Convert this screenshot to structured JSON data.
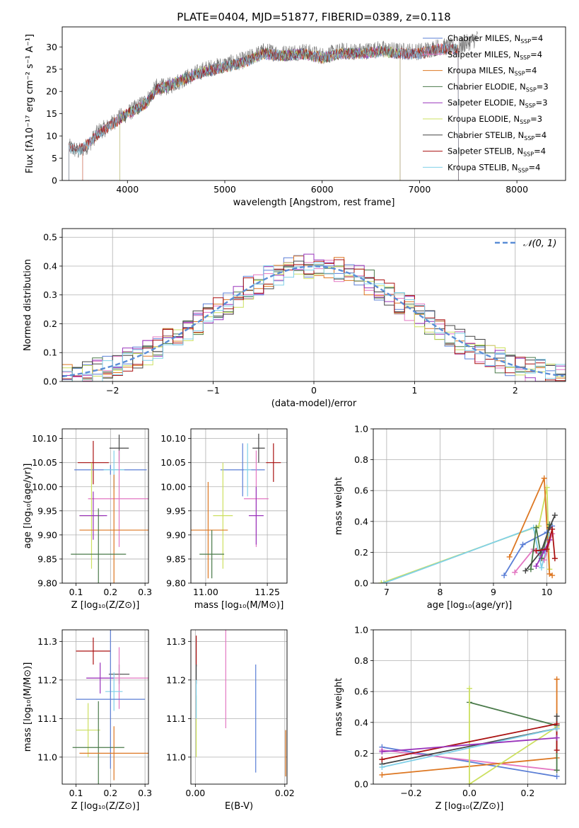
{
  "chart_data": [
    {
      "id": "spectrum",
      "type": "line",
      "title": "PLATE=0404, MJD=51877, FIBERID=0389, z=0.118",
      "xlabel": "wavelength [Angstrom, rest frame]",
      "ylabel": "Flux [fλ10⁻¹⁷ erg cm⁻² s⁻¹ A⁻¹]",
      "xlim": [
        3330,
        8500
      ],
      "ylim": [
        0,
        34.5
      ],
      "xticks": [
        4000,
        5000,
        6000,
        7000,
        8000
      ],
      "yticks": [
        0,
        5,
        10,
        15,
        20,
        25,
        30
      ],
      "legend_position": "top-right",
      "observed": {
        "color": "#777777",
        "x": [
          3400,
          3500,
          3600,
          3700,
          3800,
          3900,
          4000,
          4100,
          4200,
          4300,
          4400,
          4600,
          4800,
          5000,
          5200,
          5400,
          5600,
          5800,
          6000,
          6200,
          6400,
          6600,
          6800,
          7000,
          7200,
          7400,
          7600
        ],
        "y": [
          7.5,
          6.5,
          8,
          11,
          12,
          14,
          15,
          16.5,
          18,
          21,
          21,
          23,
          25,
          26,
          27,
          29,
          28.5,
          29,
          28,
          29,
          29,
          29.5,
          29,
          29,
          30,
          30,
          32
        ]
      },
      "models": {
        "x": [
          3400,
          3500,
          3600,
          3700,
          3800,
          3900,
          4000,
          4100,
          4200,
          4300,
          4400,
          4600,
          4800,
          5000,
          5200,
          5400,
          5600,
          5800,
          6000,
          6200,
          6400,
          6600,
          6800,
          7000,
          7200,
          7400
        ],
        "y": [
          7.5,
          6.8,
          8.2,
          10.5,
          12,
          13.5,
          15,
          16,
          17.5,
          20.5,
          21,
          23,
          24.5,
          25.5,
          26.5,
          28.5,
          28,
          28.5,
          27.5,
          28.5,
          28.5,
          29,
          28.5,
          28.5,
          29.5,
          29.5
        ]
      },
      "series": [
        {
          "name": "Chabrier MILES, N",
          "sub": "SSP",
          "suffix": "=4",
          "color": "#5b7fd6",
          "range": [
            3540,
            7400
          ]
        },
        {
          "name": "Salpeter MILES, N",
          "sub": "SSP",
          "suffix": "=4",
          "color": "#e377c2",
          "range": [
            3540,
            7400
          ]
        },
        {
          "name": "Kroupa MILES, N",
          "sub": "SSP",
          "suffix": "=4",
          "color": "#dd7722",
          "range": [
            3540,
            7400
          ]
        },
        {
          "name": "Chabrier ELODIE, N",
          "sub": "SSP",
          "suffix": "=3",
          "color": "#4a7a4a",
          "range": [
            3920,
            6800
          ]
        },
        {
          "name": "Salpeter ELODIE, N",
          "sub": "SSP",
          "suffix": "=3",
          "color": "#9933bb",
          "range": [
            3920,
            6800
          ]
        },
        {
          "name": "Kroupa ELODIE, N",
          "sub": "SSP",
          "suffix": "=3",
          "color": "#cce060",
          "range": [
            3920,
            6800
          ]
        },
        {
          "name": "Chabrier STELIB, N",
          "sub": "SSP",
          "suffix": "=4",
          "color": "#444444",
          "range": [
            3400,
            7400
          ]
        },
        {
          "name": "Salpeter STELIB, N",
          "sub": "SSP",
          "suffix": "=4",
          "color": "#aa1111",
          "range": [
            3400,
            7400
          ]
        },
        {
          "name": "Kroupa STELIB, N",
          "sub": "SSP",
          "suffix": "=4",
          "color": "#80d0e8",
          "range": [
            3400,
            7400
          ]
        }
      ]
    },
    {
      "id": "residuals",
      "type": "histogram",
      "xlabel": "(data-model)/error",
      "ylabel": "Normed distribution",
      "xlim": [
        -2.5,
        2.5
      ],
      "ylim": [
        0,
        0.53
      ],
      "xticks": [
        -2,
        -1,
        0,
        1,
        2
      ],
      "yticks": [
        0.0,
        0.1,
        0.2,
        0.3,
        0.4,
        0.5
      ],
      "grid": true,
      "legend_position": "top-right",
      "reference": {
        "name": "𝒩(0, 1)",
        "color": "#5b8ed6"
      },
      "bin_width": 0.1
    },
    {
      "id": "age-vs-Z",
      "type": "errorbar",
      "xlabel": "Z [log₁₀(Z/Z⊙)]",
      "ylabel": "age  [log₁₀(age/yr)]",
      "xlim": [
        0.06,
        0.31
      ],
      "ylim": [
        9.8,
        10.12
      ],
      "xticks": [
        0.1,
        0.2,
        0.3
      ],
      "yticks": [
        9.8,
        9.85,
        9.9,
        9.95,
        10.0,
        10.05,
        10.1
      ],
      "grid": true,
      "points": [
        {
          "color": "#aa1111",
          "x": 0.15,
          "xerr": 0.045,
          "y": 10.05,
          "yerr": 0.045
        },
        {
          "color": "#444444",
          "x": 0.225,
          "xerr": 0.028,
          "y": 10.08,
          "yerr": 0.028
        },
        {
          "color": "#5b7fd6",
          "x": 0.2,
          "xerr": 0.105,
          "y": 10.035,
          "yerr": 0.01
        },
        {
          "color": "#80d0e8",
          "x": 0.21,
          "xerr": 0.03,
          "y": 10.035,
          "yerr": 0.04
        },
        {
          "color": "#e377c2",
          "x": 0.225,
          "xerr": 0.09,
          "y": 9.975,
          "yerr": 0.1
        },
        {
          "color": "#cce060",
          "x": 0.145,
          "xerr": 0.035,
          "y": 9.94,
          "yerr": 0.11
        },
        {
          "color": "#9933bb",
          "x": 0.15,
          "xerr": 0.04,
          "y": 9.94,
          "yerr": 0.05
        },
        {
          "color": "#dd7722",
          "x": 0.21,
          "xerr": 0.1,
          "y": 9.91,
          "yerr": 0.115
        },
        {
          "color": "#4a7a4a",
          "x": 0.165,
          "xerr": 0.08,
          "y": 9.86,
          "yerr": 0.095
        }
      ]
    },
    {
      "id": "age-vs-mass",
      "type": "errorbar",
      "xlabel": "mass [log₁₀(M/M⊙)]",
      "ylabel": "",
      "xlim": [
        10.94,
        11.33
      ],
      "ylim": [
        9.8,
        10.12
      ],
      "xticks": [
        11.0,
        11.25
      ],
      "xtick_labels": [
        "11.00",
        "11.25"
      ],
      "yticks": [
        9.8,
        9.85,
        9.9,
        9.95,
        10.0,
        10.05,
        10.1
      ],
      "grid": true,
      "points": [
        {
          "color": "#aa1111",
          "x": 11.275,
          "xerr": 0.03,
          "y": 10.05,
          "yerr": 0.04
        },
        {
          "color": "#444444",
          "x": 11.215,
          "xerr": 0.025,
          "y": 10.08,
          "yerr": 0.03
        },
        {
          "color": "#5b7fd6",
          "x": 11.15,
          "xerr": 0.09,
          "y": 10.035,
          "yerr": 0.055
        },
        {
          "color": "#80d0e8",
          "x": 11.17,
          "xerr": 0.015,
          "y": 10.035,
          "yerr": 0.055
        },
        {
          "color": "#e377c2",
          "x": 11.205,
          "xerr": 0.05,
          "y": 9.975,
          "yerr": 0.1
        },
        {
          "color": "#cce060",
          "x": 11.07,
          "xerr": 0.04,
          "y": 9.94,
          "yerr": 0.11
        },
        {
          "color": "#9933bb",
          "x": 11.205,
          "xerr": 0.03,
          "y": 9.94,
          "yerr": 0.06
        },
        {
          "color": "#dd7722",
          "x": 11.01,
          "xerr": 0.08,
          "y": 9.91,
          "yerr": 0.1
        },
        {
          "color": "#4a7a4a",
          "x": 11.025,
          "xerr": 0.05,
          "y": 9.86,
          "yerr": 0.05
        }
      ]
    },
    {
      "id": "weight-vs-age",
      "type": "line",
      "xlabel": "age  [log₁₀(age/yr)]",
      "ylabel": "mass weight",
      "xlim": [
        6.75,
        10.35
      ],
      "ylim": [
        0,
        1.0
      ],
      "xticks": [
        7,
        8,
        9,
        10
      ],
      "yticks": [
        0.0,
        0.2,
        0.4,
        0.6,
        0.8,
        1.0
      ],
      "grid": true,
      "series": [
        {
          "color": "#cce060",
          "x": [
            6.9,
            9.85,
            10.0,
            10.05
          ],
          "y": [
            0.0,
            0.37,
            0.62,
            0.09
          ]
        },
        {
          "color": "#80d0e8",
          "x": [
            6.95,
            9.75,
            9.9,
            10.05
          ],
          "y": [
            0.0,
            0.36,
            0.1,
            0.31
          ]
        },
        {
          "color": "#dd7722",
          "x": [
            9.3,
            9.95,
            10.05,
            10.1
          ],
          "y": [
            0.17,
            0.68,
            0.06,
            0.05
          ]
        },
        {
          "color": "#5b7fd6",
          "x": [
            9.2,
            9.55,
            10.0,
            10.1
          ],
          "y": [
            0.05,
            0.25,
            0.33,
            0.37
          ]
        },
        {
          "color": "#e377c2",
          "x": [
            9.4,
            9.75,
            9.95,
            10.1
          ],
          "y": [
            0.07,
            0.22,
            0.15,
            0.32
          ]
        },
        {
          "color": "#4a7a4a",
          "x": [
            9.7,
            9.8,
            9.9,
            10.05
          ],
          "y": [
            0.09,
            0.36,
            0.16,
            0.38
          ]
        },
        {
          "color": "#444444",
          "x": [
            9.6,
            9.9,
            10.05,
            10.15
          ],
          "y": [
            0.08,
            0.21,
            0.36,
            0.44
          ]
        },
        {
          "color": "#9933bb",
          "x": [
            9.8,
            9.95,
            10.05
          ],
          "y": [
            0.11,
            0.21,
            0.28
          ]
        },
        {
          "color": "#aa1111",
          "x": [
            9.8,
            10.0,
            10.1,
            10.15
          ],
          "y": [
            0.21,
            0.22,
            0.35,
            0.16
          ]
        }
      ]
    },
    {
      "id": "mass-vs-Z",
      "type": "errorbar",
      "xlabel": "Z [log₁₀(Z/Z⊙)]",
      "ylabel": "mass [log₁₀(M/M⊙)]",
      "xlim": [
        0.06,
        0.31
      ],
      "ylim": [
        10.93,
        11.33
      ],
      "xticks": [
        0.1,
        0.2,
        0.3
      ],
      "yticks": [
        11.0,
        11.1,
        11.2,
        11.3
      ],
      "grid": true,
      "points": [
        {
          "color": "#aa1111",
          "x": 0.15,
          "xerr": 0.05,
          "y": 11.275,
          "yerr": 0.035
        },
        {
          "color": "#444444",
          "x": 0.225,
          "xerr": 0.03,
          "y": 11.215,
          "yerr": 0.025
        },
        {
          "color": "#e377c2",
          "x": 0.225,
          "xerr": 0.095,
          "y": 11.205,
          "yerr": 0.08
        },
        {
          "color": "#9933bb",
          "x": 0.17,
          "xerr": 0.04,
          "y": 11.205,
          "yerr": 0.04
        },
        {
          "color": "#80d0e8",
          "x": 0.21,
          "xerr": 0.025,
          "y": 11.17,
          "yerr": 0.05
        },
        {
          "color": "#5b7fd6",
          "x": 0.2,
          "xerr": 0.1,
          "y": 11.15,
          "yerr": 0.18
        },
        {
          "color": "#cce060",
          "x": 0.135,
          "xerr": 0.035,
          "y": 11.07,
          "yerr": 0.07
        },
        {
          "color": "#4a7a4a",
          "x": 0.165,
          "xerr": 0.075,
          "y": 11.025,
          "yerr": 0.12
        },
        {
          "color": "#dd7722",
          "x": 0.21,
          "xerr": 0.1,
          "y": 11.01,
          "yerr": 0.07
        }
      ]
    },
    {
      "id": "mass-vs-EBV",
      "type": "errorbar",
      "xlabel": "E(B-V)",
      "ylabel": "",
      "xlim": [
        -0.001,
        0.0205
      ],
      "ylim": [
        10.93,
        11.33
      ],
      "xticks": [
        0.0,
        0.02
      ],
      "xtick_labels": [
        "0.00",
        "0.02"
      ],
      "yticks": [
        11.0,
        11.1,
        11.2,
        11.3
      ],
      "grid": true,
      "points": [
        {
          "color": "#aa1111",
          "x": 0.0002,
          "xerr": 0,
          "y": 11.275,
          "yerr": 0.04
        },
        {
          "color": "#444444",
          "x": 0.0002,
          "xerr": 0,
          "y": 11.215,
          "yerr": 0.025
        },
        {
          "color": "#cce060",
          "x": 0.0002,
          "xerr": 0,
          "y": 11.08,
          "yerr": 0.08
        },
        {
          "color": "#80d0e8",
          "x": 0.0002,
          "xerr": 0,
          "y": 11.15,
          "yerr": 0.05
        },
        {
          "color": "#e377c2",
          "x": 0.0068,
          "xerr": 0,
          "y": 11.205,
          "yerr": 0.13
        },
        {
          "color": "#5b7fd6",
          "x": 0.0135,
          "xerr": 0,
          "y": 11.1,
          "yerr": 0.14
        },
        {
          "color": "#dd7722",
          "x": 0.0202,
          "xerr": 0,
          "y": 11.01,
          "yerr": 0.06
        }
      ]
    },
    {
      "id": "weight-vs-Z",
      "type": "line",
      "xlabel": "Z [log₁₀(Z/Z⊙)]",
      "ylabel": "mass weight",
      "xlim": [
        -0.33,
        0.33
      ],
      "ylim": [
        0,
        1.0
      ],
      "xticks": [
        -0.2,
        0.0,
        0.2
      ],
      "yticks": [
        0.0,
        0.2,
        0.4,
        0.6,
        0.8,
        1.0
      ],
      "grid": true,
      "series": [
        {
          "color": "#5b7fd6",
          "x": [
            -0.3,
            0.3
          ],
          "y": [
            0.24,
            0.05
          ]
        },
        {
          "color": "#e377c2",
          "x": [
            -0.3,
            0.3
          ],
          "y": [
            0.22,
            0.09
          ]
        },
        {
          "color": "#dd7722",
          "x": [
            -0.3,
            0.3,
            0.3
          ],
          "y": [
            0.06,
            0.17,
            0.68
          ]
        },
        {
          "color": "#4a7a4a",
          "x": [
            0.0,
            0.3,
            0.3
          ],
          "y": [
            0.53,
            0.38,
            0.09
          ]
        },
        {
          "color": "#cce060",
          "x": [
            0.0,
            0.0,
            0.3
          ],
          "y": [
            0.62,
            0.0,
            0.37
          ]
        },
        {
          "color": "#444444",
          "x": [
            -0.3,
            0.3,
            0.3
          ],
          "y": [
            0.13,
            0.36,
            0.44
          ]
        },
        {
          "color": "#aa1111",
          "x": [
            -0.3,
            0.3,
            0.3
          ],
          "y": [
            0.16,
            0.39,
            0.22
          ]
        },
        {
          "color": "#80d0e8",
          "x": [
            -0.3,
            0.3
          ],
          "y": [
            0.11,
            0.36
          ]
        },
        {
          "color": "#9933bb",
          "x": [
            -0.3,
            0.3
          ],
          "y": [
            0.21,
            0.3
          ]
        }
      ]
    }
  ]
}
